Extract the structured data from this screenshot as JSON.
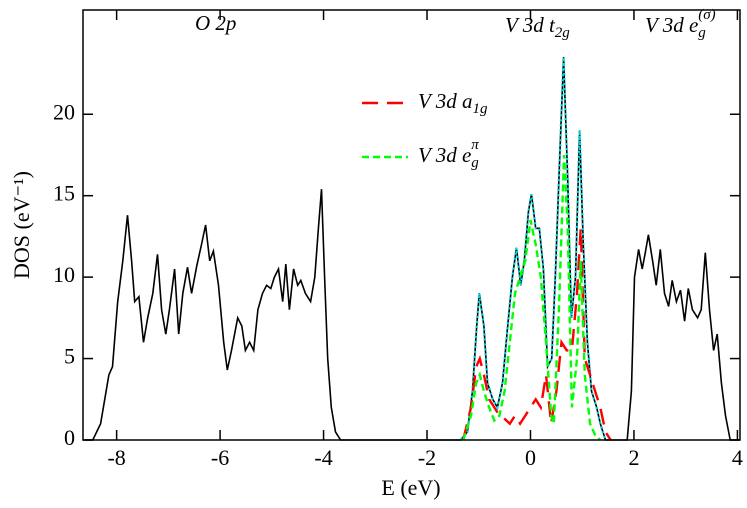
{
  "chart_data": {
    "type": "line",
    "xlabel": "E (eV)",
    "ylabel": "DOS (eV⁻¹)",
    "xlim": [
      -8.65,
      4.05
    ],
    "ylim": [
      0,
      26.4
    ],
    "xticks": [
      -8,
      -6,
      -4,
      -2,
      0,
      2,
      4
    ],
    "yticks": [
      0,
      5,
      10,
      15,
      20
    ],
    "annotations": [
      {
        "segments": [
          {
            "text": "O 2p"
          }
        ]
      },
      {
        "segments": [
          {
            "text": "V 3d t"
          },
          {
            "text": "2g",
            "shift": "sub"
          }
        ]
      },
      {
        "segments": [
          {
            "text": "V 3d e"
          },
          {
            "text": "g",
            "shift": "sub"
          },
          {
            "text": "(σ)",
            "shift": "sup"
          }
        ]
      }
    ],
    "series": [
      {
        "color": "#000000",
        "dash": "solid",
        "x": [
          -8.62,
          -8.46,
          -8.31,
          -8.15,
          -8.08,
          -7.98,
          -7.88,
          -7.79,
          -7.71,
          -7.65,
          -7.57,
          -7.48,
          -7.4,
          -7.3,
          -7.21,
          -7.13,
          -7.05,
          -6.98,
          -6.88,
          -6.8,
          -6.72,
          -6.63,
          -6.55,
          -6.45,
          -6.36,
          -6.28,
          -6.2,
          -6.13,
          -6.03,
          -5.93,
          -5.86,
          -5.78,
          -5.66,
          -5.58,
          -5.51,
          -5.43,
          -5.35,
          -5.27,
          -5.18,
          -5.1,
          -5.02,
          -4.95,
          -4.87,
          -4.79,
          -4.73,
          -4.66,
          -4.58,
          -4.5,
          -4.44,
          -4.35,
          -4.25,
          -4.17,
          -4.1,
          -4.04,
          -3.98,
          -3.92,
          -3.85,
          -3.77,
          -3.67,
          -1.35,
          -1.22,
          -1.12,
          -1.04,
          -0.99,
          -0.9,
          -0.83,
          -0.73,
          -0.64,
          -0.54,
          -0.44,
          -0.35,
          -0.27,
          -0.19,
          -0.12,
          -0.04,
          0.02,
          0.1,
          0.17,
          0.25,
          0.33,
          0.41,
          0.48,
          0.56,
          0.64,
          0.72,
          0.79,
          0.87,
          0.95,
          1.02,
          1.1,
          1.18,
          1.28,
          1.35,
          1.45,
          1.87,
          1.95,
          2.01,
          2.09,
          2.16,
          2.22,
          2.28,
          2.36,
          2.43,
          2.51,
          2.59,
          2.67,
          2.74,
          2.82,
          2.9,
          2.98,
          3.05,
          3.13,
          3.23,
          3.3,
          3.38,
          3.46,
          3.54,
          3.61,
          3.69,
          3.77,
          3.86,
          4.03
        ],
        "values": [
          0,
          0,
          1,
          4,
          4.5,
          8.5,
          11,
          13.8,
          11,
          8.5,
          8.8,
          6,
          7.5,
          9,
          11.4,
          8,
          6.5,
          8,
          10.5,
          6.5,
          9,
          10.6,
          9,
          10.7,
          12,
          13.2,
          11,
          11.6,
          9.5,
          6,
          4.3,
          5.5,
          7.5,
          7,
          5.5,
          6,
          5.5,
          8,
          9,
          9.5,
          9.3,
          10,
          10.5,
          8.5,
          10.8,
          8,
          10.5,
          9.5,
          9.8,
          9,
          8.5,
          10,
          13,
          15.4,
          10,
          5,
          2,
          0.5,
          0,
          0,
          0.5,
          3,
          7,
          9,
          7,
          3.5,
          2.5,
          2,
          3.5,
          7,
          10,
          11.8,
          9.5,
          11,
          14,
          15.1,
          13,
          13,
          10.5,
          4.5,
          5,
          10,
          17,
          23.5,
          16,
          7.5,
          10,
          19,
          12,
          6,
          3,
          2,
          1,
          0,
          0,
          3,
          10,
          11.7,
          10.5,
          11.5,
          12.6,
          11,
          9.5,
          11.7,
          9,
          8.2,
          9.8,
          8.5,
          9.2,
          7.3,
          9.3,
          8,
          7.5,
          8,
          11.5,
          8,
          5.5,
          6.5,
          3.5,
          1.5,
          0,
          0
        ]
      },
      {
        "color": "#00d8e0",
        "dash": "dotted",
        "x": [
          -1.35,
          -1.22,
          -1.12,
          -1.04,
          -0.99,
          -0.9,
          -0.83,
          -0.73,
          -0.64,
          -0.54,
          -0.44,
          -0.35,
          -0.27,
          -0.19,
          -0.12,
          -0.04,
          0.02,
          0.1,
          0.17,
          0.25,
          0.33,
          0.41,
          0.48,
          0.56,
          0.64,
          0.72,
          0.79,
          0.87,
          0.95,
          1.02,
          1.1,
          1.18,
          1.28,
          1.35,
          1.45
        ],
        "values": [
          0,
          0.5,
          3,
          7,
          9,
          7,
          3.5,
          2.5,
          2,
          3.5,
          7,
          10,
          11.8,
          9.5,
          11,
          14,
          15.1,
          13,
          13,
          10.5,
          4.5,
          5,
          10,
          17,
          23.5,
          16,
          7.5,
          10,
          19,
          12,
          6,
          3,
          2,
          1,
          0
        ]
      },
      {
        "name": [
          {
            "text": "V 3d a"
          },
          {
            "text": "1g",
            "shift": "sub"
          }
        ],
        "color": "#ff0000",
        "dash": "long",
        "x": [
          -1.3,
          -1.15,
          -1.05,
          -0.98,
          -0.9,
          -0.8,
          -0.7,
          -0.6,
          -0.5,
          -0.4,
          -0.3,
          -0.2,
          -0.1,
          0,
          0.1,
          0.2,
          0.3,
          0.4,
          0.5,
          0.6,
          0.7,
          0.8,
          0.9,
          0.97,
          1.05,
          1.15,
          1.25,
          1.35,
          1.45,
          1.55
        ],
        "values": [
          0,
          2,
          4.5,
          5,
          4,
          2.5,
          2,
          1.5,
          1.3,
          1,
          1.5,
          1,
          1.5,
          2,
          2.5,
          2,
          4,
          1,
          3,
          6,
          5.5,
          5.5,
          9,
          13,
          5,
          4,
          3,
          2,
          0.5,
          0
        ]
      },
      {
        "name": [
          {
            "text": "V 3d e"
          },
          {
            "text": "g",
            "shift": "sub"
          },
          {
            "text": "π",
            "shift": "sup"
          }
        ],
        "color": "#00ff00",
        "dash": "short",
        "x": [
          -1.3,
          -1.15,
          -1.05,
          -0.98,
          -0.9,
          -0.8,
          -0.7,
          -0.6,
          -0.5,
          -0.4,
          -0.3,
          -0.2,
          -0.1,
          0,
          0.1,
          0.2,
          0.3,
          0.4,
          0.45,
          0.55,
          0.65,
          0.72,
          0.8,
          0.9,
          0.97,
          1.05,
          1.15,
          1.25,
          1.35
        ],
        "values": [
          0,
          1.5,
          3.5,
          4,
          3,
          2,
          1.2,
          1.5,
          3,
          6,
          9,
          10,
          11,
          13.5,
          12,
          10,
          6,
          1.5,
          1,
          8,
          17.5,
          13,
          2,
          5,
          11,
          4,
          1,
          0.3,
          0
        ]
      }
    ]
  }
}
